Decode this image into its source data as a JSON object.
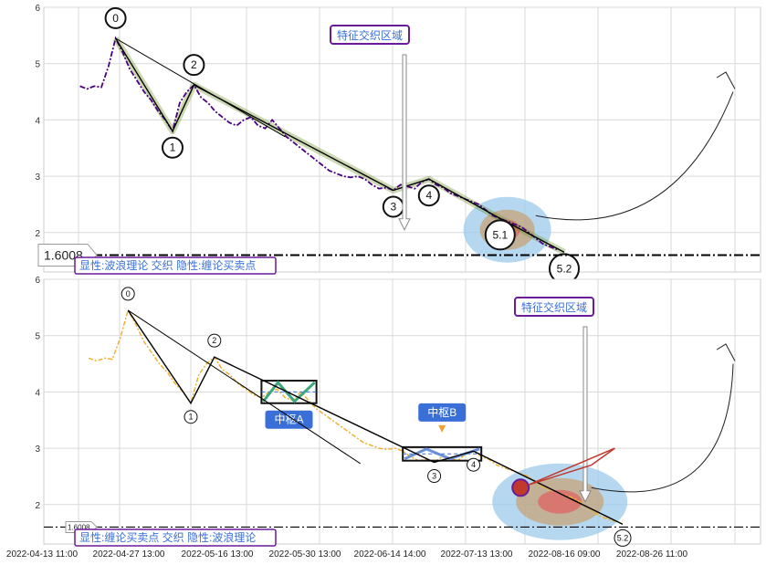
{
  "x_tick_labels": [
    "2022-04-13 11:00",
    "2022-04-27 13:00",
    "2022-05-16 13:00",
    "2022-05-30 13:00",
    "2022-06-14 14:00",
    "2022-07-13 13:00",
    "2022-08-16 09:00",
    "2022-08-26 11:00"
  ],
  "level_value": "1.6008",
  "colors": {
    "price_top": "#4b0082",
    "price_bottom": "#f0b030",
    "wave": "#000000",
    "halo": "#6b8e23",
    "zone_blue": "#9ccbeb",
    "zone_tan": "#c8a070",
    "zone_red": "#e06060",
    "callout_border": "#6a1b9a",
    "label_blue": "#3a6fd8"
  },
  "chart_data": [
    {
      "type": "line",
      "panel": "top",
      "ylim": [
        1.3,
        6.0
      ],
      "ytick_labels": [
        "2",
        "3",
        "4",
        "5",
        "6"
      ],
      "grid": true,
      "reference_line": 1.6008,
      "series": [
        {
          "values": [
            [
              2,
              4.6
            ],
            [
              3,
              4.55
            ],
            [
              4,
              4.6
            ],
            [
              5,
              4.58
            ],
            [
              6,
              4.95
            ],
            [
              7,
              5.45
            ],
            [
              8,
              5.2
            ],
            [
              9,
              4.9
            ],
            [
              10,
              4.7
            ],
            [
              11,
              4.5
            ],
            [
              12,
              4.35
            ],
            [
              13,
              4.15
            ],
            [
              14,
              4.0
            ],
            [
              15,
              3.8
            ],
            [
              16,
              4.3
            ],
            [
              17,
              4.5
            ],
            [
              18,
              4.62
            ],
            [
              19,
              4.4
            ],
            [
              20,
              4.3
            ],
            [
              21,
              4.15
            ],
            [
              22,
              4.05
            ],
            [
              23,
              3.95
            ],
            [
              24,
              3.9
            ],
            [
              25,
              4.0
            ],
            [
              26,
              4.05
            ],
            [
              27,
              3.9
            ],
            [
              28,
              3.85
            ],
            [
              29,
              4.0
            ],
            [
              30,
              3.85
            ],
            [
              31,
              3.7
            ],
            [
              32,
              3.6
            ],
            [
              33,
              3.5
            ],
            [
              34,
              3.4
            ],
            [
              35,
              3.3
            ],
            [
              36,
              3.2
            ],
            [
              37,
              3.1
            ],
            [
              38,
              3.05
            ],
            [
              39,
              3.0
            ],
            [
              40,
              2.98
            ],
            [
              41,
              3.0
            ],
            [
              42,
              2.95
            ],
            [
              43,
              2.85
            ],
            [
              44,
              2.78
            ],
            [
              45,
              2.8
            ],
            [
              46,
              2.75
            ],
            [
              47,
              2.85
            ],
            [
              48,
              2.82
            ],
            [
              49,
              2.78
            ],
            [
              50,
              2.9
            ],
            [
              51,
              2.95
            ],
            [
              52,
              2.85
            ],
            [
              53,
              2.8
            ],
            [
              54,
              2.7
            ],
            [
              55,
              2.65
            ],
            [
              56,
              2.6
            ],
            [
              57,
              2.55
            ],
            [
              58,
              2.5
            ],
            [
              59,
              2.4
            ],
            [
              60,
              2.3
            ],
            [
              61,
              2.25
            ],
            [
              62,
              2.2
            ],
            [
              63,
              2.15
            ],
            [
              64,
              2.1
            ],
            [
              65,
              2.0
            ],
            [
              66,
              1.9
            ],
            [
              67,
              1.8
            ],
            [
              68,
              1.75
            ],
            [
              69,
              1.7
            ]
          ]
        }
      ],
      "wave_points": [
        {
          "label": "0",
          "x": 7,
          "y": 5.45
        },
        {
          "label": "1",
          "x": 15,
          "y": 3.8
        },
        {
          "label": "2",
          "x": 18,
          "y": 4.62
        },
        {
          "label": "3",
          "x": 46,
          "y": 2.75
        },
        {
          "label": "4",
          "x": 51,
          "y": 2.95
        },
        {
          "label": "5.1",
          "x": 61,
          "y": 2.25
        },
        {
          "label": "5.2",
          "x": 70,
          "y": 1.65
        }
      ],
      "legend_text": "显性:波浪理论 交织 隐性:缠论买卖点",
      "annotations": [
        {
          "text": "特征交织区域",
          "x": 62,
          "y": 5.6
        }
      ]
    },
    {
      "type": "line",
      "panel": "bottom",
      "ylim": [
        1.3,
        6.0
      ],
      "ytick_labels": [
        "2",
        "3",
        "4",
        "5",
        "6"
      ],
      "grid": true,
      "reference_line": 1.6008,
      "series": [
        {
          "values": [
            [
              2,
              4.6
            ],
            [
              3,
              4.55
            ],
            [
              4,
              4.6
            ],
            [
              5,
              4.58
            ],
            [
              6,
              4.95
            ],
            [
              7,
              5.45
            ],
            [
              8,
              5.2
            ],
            [
              9,
              4.9
            ],
            [
              10,
              4.7
            ],
            [
              11,
              4.5
            ],
            [
              12,
              4.35
            ],
            [
              13,
              4.15
            ],
            [
              14,
              4.0
            ],
            [
              15,
              3.8
            ],
            [
              16,
              4.3
            ],
            [
              17,
              4.5
            ],
            [
              18,
              4.62
            ],
            [
              19,
              4.4
            ],
            [
              20,
              4.3
            ],
            [
              21,
              4.15
            ],
            [
              22,
              4.05
            ],
            [
              23,
              3.95
            ],
            [
              24,
              3.9
            ],
            [
              25,
              4.0
            ],
            [
              26,
              4.05
            ],
            [
              27,
              3.9
            ],
            [
              28,
              3.85
            ],
            [
              29,
              4.0
            ],
            [
              30,
              3.85
            ],
            [
              31,
              3.7
            ],
            [
              32,
              3.6
            ],
            [
              33,
              3.5
            ],
            [
              34,
              3.4
            ],
            [
              35,
              3.3
            ],
            [
              36,
              3.2
            ],
            [
              37,
              3.1
            ],
            [
              38,
              3.05
            ],
            [
              39,
              3.0
            ],
            [
              40,
              2.98
            ],
            [
              41,
              3.0
            ],
            [
              42,
              2.95
            ],
            [
              43,
              2.85
            ],
            [
              44,
              2.78
            ],
            [
              45,
              2.8
            ],
            [
              46,
              2.75
            ],
            [
              47,
              2.85
            ],
            [
              48,
              2.82
            ],
            [
              49,
              2.78
            ],
            [
              50,
              2.9
            ],
            [
              51,
              2.95
            ],
            [
              52,
              2.85
            ],
            [
              53,
              2.8
            ],
            [
              54,
              2.7
            ],
            [
              55,
              2.65
            ],
            [
              56,
              2.6
            ],
            [
              57,
              2.55
            ],
            [
              58,
              2.5
            ],
            [
              59,
              2.4
            ],
            [
              60,
              2.3
            ],
            [
              61,
              2.25
            ],
            [
              62,
              2.2
            ],
            [
              63,
              2.15
            ],
            [
              64,
              2.1
            ],
            [
              65,
              2.0
            ],
            [
              66,
              1.9
            ],
            [
              67,
              1.8
            ],
            [
              68,
              1.75
            ],
            [
              69,
              1.7
            ]
          ]
        }
      ],
      "wave_points": [
        {
          "label": "0",
          "x": 7,
          "y": 5.45
        },
        {
          "label": "1",
          "x": 15,
          "y": 3.8
        },
        {
          "label": "2",
          "x": 18,
          "y": 4.62
        },
        {
          "label": "3",
          "x": 46,
          "y": 2.75
        },
        {
          "label": "4",
          "x": 51,
          "y": 2.95
        },
        {
          "label": "5.2",
          "x": 70,
          "y": 1.65
        }
      ],
      "pivots": [
        {
          "label": "中枢A",
          "x0": 24,
          "x1": 31,
          "y0": 3.8,
          "y1": 4.2
        },
        {
          "label": "中枢B",
          "x0": 42,
          "x1": 52,
          "y0": 2.78,
          "y1": 3.02
        }
      ],
      "legend_text": "显性:缠论买卖点 交织 隐性:波浪理论",
      "annotations": [
        {
          "text": "特征交织区域",
          "x": 62,
          "y": 5.6
        }
      ]
    }
  ]
}
